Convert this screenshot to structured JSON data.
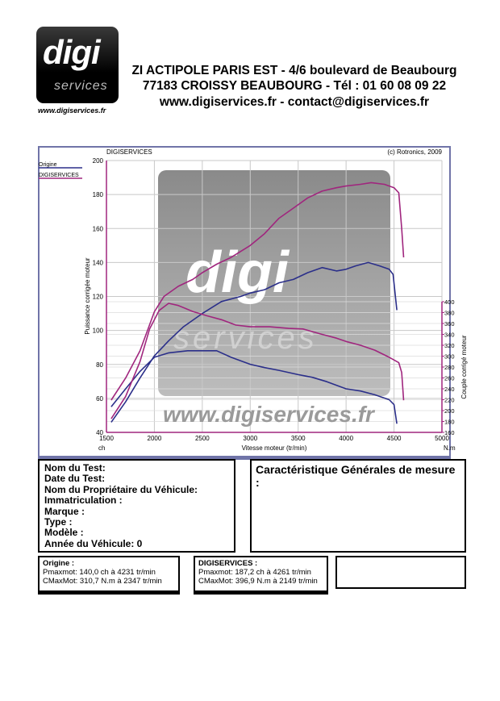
{
  "header": {
    "logo_text": "digi",
    "logo_sub": "services",
    "logo_url": "www.digiservices.fr",
    "line1": "ZI ACTIPOLE PARIS EST - 4/6 boulevard de Beaubourg",
    "line2": "77183 CROISSY BEAUBOURG - Tél : 01 60 08 09 22",
    "line3": "www.digiservices.fr - contact@digiservices.fr"
  },
  "chart_data": {
    "type": "line",
    "title": "DIGISERVICES",
    "copyright": "(c) Rotronics, 2009",
    "xlabel": "Vitesse moteur (tr/min)",
    "ylabel": "Puissance corrigée moteur",
    "y2label": "Couple corrigé moteur",
    "left_unit": "ch",
    "right_unit": "N.m",
    "xlim": [
      1500,
      5000
    ],
    "ylim": [
      40,
      200
    ],
    "y2lim": [
      160,
      400
    ],
    "x_ticks": [
      "1500",
      "2000",
      "2500",
      "3000",
      "3500",
      "4000",
      "4500",
      "5000"
    ],
    "y_ticks": [
      "40",
      "60",
      "80",
      "100",
      "120",
      "140",
      "160",
      "180",
      "200"
    ],
    "y2_ticks": [
      "160",
      "180",
      "200",
      "220",
      "240",
      "260",
      "280",
      "300",
      "320",
      "340",
      "360",
      "380",
      "400"
    ],
    "grid": true,
    "legend_position": "top-left",
    "watermark": {
      "text1": "digi",
      "text2": "services",
      "text3": "www.digiservices.fr"
    },
    "series": [
      {
        "name": "Origine",
        "quantity": "power",
        "axis": "left",
        "color": "#2b2f8a",
        "x": [
          1550,
          1700,
          1850,
          2000,
          2150,
          2300,
          2500,
          2700,
          2900,
          3000,
          3150,
          3300,
          3450,
          3600,
          3750,
          3900,
          4000,
          4100,
          4231,
          4350,
          4450,
          4490,
          4530
        ],
        "y": [
          46,
          58,
          72,
          85,
          94,
          102,
          110,
          117,
          120,
          122,
          124,
          128,
          130,
          134,
          137,
          135,
          136,
          138,
          140,
          138,
          136,
          133,
          112
        ]
      },
      {
        "name": "DIGISERVICES",
        "quantity": "power",
        "axis": "left",
        "color": "#a0267e",
        "x": [
          1550,
          1700,
          1850,
          2000,
          2100,
          2250,
          2400,
          2500,
          2650,
          2800,
          3000,
          3150,
          3300,
          3450,
          3600,
          3750,
          3900,
          4000,
          4150,
          4261,
          4400,
          4500,
          4550,
          4580,
          4600
        ],
        "y": [
          59,
          72,
          88,
          111,
          120,
          126,
          130,
          134,
          139,
          143,
          150,
          157,
          166,
          172,
          178,
          182,
          184,
          185,
          186,
          187,
          186,
          184,
          181,
          160,
          143
        ]
      },
      {
        "name": "Origine",
        "quantity": "torque",
        "axis": "right",
        "color": "#2b2f8a",
        "x": [
          1550,
          1700,
          1850,
          2000,
          2150,
          2347,
          2500,
          2650,
          2800,
          3000,
          3150,
          3300,
          3500,
          3650,
          3800,
          4000,
          4150,
          4300,
          4450,
          4500,
          4530
        ],
        "y": [
          207,
          240,
          272,
          298,
          306,
          310,
          310,
          310,
          298,
          285,
          279,
          274,
          266,
          261,
          253,
          240,
          236,
          229,
          220,
          211,
          176
        ]
      },
      {
        "name": "DIGISERVICES",
        "quantity": "torque",
        "axis": "right",
        "color": "#a0267e",
        "x": [
          1550,
          1700,
          1850,
          1950,
          2050,
          2149,
          2250,
          2400,
          2550,
          2700,
          2850,
          3000,
          3200,
          3400,
          3550,
          3750,
          3900,
          4000,
          4150,
          4300,
          4450,
          4550,
          4580,
          4600
        ],
        "y": [
          185,
          226,
          290,
          350,
          384,
          397,
          393,
          382,
          374,
          367,
          357,
          354,
          354,
          351,
          350,
          340,
          333,
          327,
          320,
          311,
          298,
          288,
          270,
          219
        ]
      }
    ]
  },
  "legend": {
    "origine": "Origine",
    "digi": "DIGISERVICES"
  },
  "info": {
    "title": "Caractéristique Générales de mesure :",
    "fields": [
      "Nom du Test:",
      "Date du Test:",
      "Nom du Propriétaire du Véhicule:",
      "Immatriculation  :",
      "Marque  :",
      "Type  :",
      "Modèle  :",
      "Année du Véhicule: 0"
    ]
  },
  "results": {
    "origine": {
      "title": "Origine :",
      "pmax": "Pmaxmot: 140,0 ch à 4231 tr/min",
      "cmax": "CMaxMot: 310,7 N.m à 2347 tr/min"
    },
    "digi": {
      "title": "DIGISERVICES :",
      "pmax": "Pmaxmot: 187,2 ch à 4261 tr/min",
      "cmax": "CMaxMot: 396,9 N.m à 2149 tr/min"
    }
  }
}
